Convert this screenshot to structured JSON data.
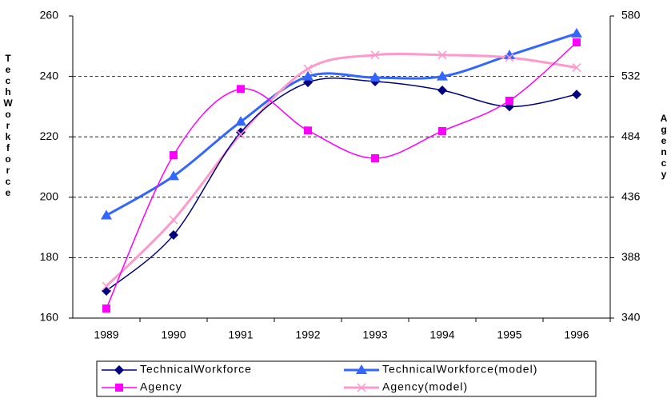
{
  "chart_data": {
    "type": "line",
    "y_label": "TechWorkforce",
    "y2_label": "Agency",
    "categories": [
      "1989",
      "1990",
      "1991",
      "1992",
      "1993",
      "1994",
      "1995",
      "1996"
    ],
    "series": [
      {
        "name": "TechnicalWorkforce",
        "color": "#000080",
        "marker": "diamond",
        "line_width": 1.5,
        "axis": "y",
        "values": [
          169,
          187.5,
          221.5,
          238,
          238.3,
          235.4,
          230,
          234
        ]
      },
      {
        "name": "TechnicalWorkforce(model)",
        "color": "#3366ff",
        "marker": "triangle",
        "line_width": 3,
        "axis": "y",
        "values": [
          194,
          207,
          225,
          240,
          239.6,
          240,
          247,
          254.2
        ]
      },
      {
        "name": "Agency",
        "color": "#ff00ff",
        "marker": "square",
        "line_width": 1.5,
        "axis": "y2",
        "values": [
          347.6,
          469.5,
          522,
          489,
          467,
          488.6,
          512.7,
          559
        ]
      },
      {
        "name": "Agency(model)",
        "color": "#ff99cc",
        "marker": "x",
        "line_width": 3,
        "axis": "y2",
        "values": [
          365.4,
          418,
          486,
          538,
          549,
          549,
          547,
          539
        ]
      }
    ],
    "ylim": [
      160,
      260
    ],
    "yticks": [
      160,
      180,
      200,
      220,
      240,
      260
    ],
    "y2lim": [
      340,
      580
    ],
    "y2ticks": [
      340,
      388,
      436,
      484,
      532,
      580
    ],
    "grid": true,
    "smooth": true,
    "legend": "bottom"
  }
}
